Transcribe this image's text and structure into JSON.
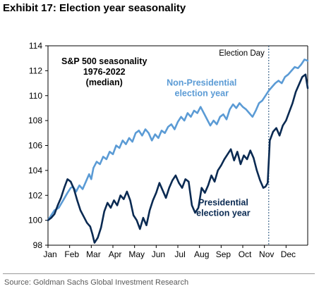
{
  "exhibit_title": "Exhibit 17: Election year seasonality",
  "source": "Source: Goldman Sachs Global Investment Research",
  "colors": {
    "non_presidential": "#5b9bd5",
    "presidential": "#0a2a52",
    "election_day_line": "#1f4e79"
  },
  "chart_data": {
    "type": "line",
    "title_lines": [
      "S&P 500 seasonality",
      "1976-2022",
      "(median)"
    ],
    "xlabel": "",
    "ylabel": "",
    "x_tick_labels": [
      "Jan",
      "Feb",
      "Mar",
      "Apr",
      "May",
      "Jun",
      "Jul",
      "Aug",
      "Sep",
      "Oct",
      "Nov",
      "Dec"
    ],
    "x_range_months": [
      0,
      12
    ],
    "ylim": [
      98,
      114
    ],
    "y_ticks": [
      98,
      100,
      102,
      104,
      106,
      108,
      110,
      112,
      114
    ],
    "grid": false,
    "annotation": {
      "label": "Election Day",
      "x_month": 10.2
    },
    "series": [
      {
        "name": "Non-Presidential election year",
        "label_lines": [
          "Non-Presidential",
          "election year"
        ],
        "color": "#5b9bd5",
        "x_month": [
          0.0,
          0.15,
          0.3,
          0.5,
          0.7,
          0.9,
          1.05,
          1.15,
          1.3,
          1.45,
          1.6,
          1.75,
          1.9,
          2.0,
          2.1,
          2.25,
          2.4,
          2.55,
          2.7,
          2.85,
          3.0,
          3.15,
          3.3,
          3.45,
          3.6,
          3.75,
          3.9,
          4.05,
          4.2,
          4.35,
          4.5,
          4.65,
          4.8,
          4.95,
          5.1,
          5.25,
          5.4,
          5.55,
          5.7,
          5.85,
          6.0,
          6.15,
          6.3,
          6.45,
          6.6,
          6.75,
          6.9,
          7.05,
          7.2,
          7.35,
          7.5,
          7.65,
          7.8,
          7.95,
          8.1,
          8.25,
          8.4,
          8.55,
          8.7,
          8.85,
          9.0,
          9.15,
          9.3,
          9.45,
          9.6,
          9.75,
          9.9,
          10.05,
          10.2,
          10.35,
          10.5,
          10.65,
          10.8,
          10.95,
          11.1,
          11.25,
          11.4,
          11.55,
          11.7,
          11.85,
          12.0
        ],
        "values": [
          100.0,
          100.4,
          100.8,
          101.0,
          101.6,
          102.2,
          102.6,
          102.7,
          102.3,
          102.8,
          102.5,
          103.1,
          103.7,
          103.3,
          104.2,
          104.7,
          104.5,
          105.1,
          104.9,
          105.5,
          105.3,
          106.0,
          105.8,
          106.4,
          106.1,
          106.6,
          106.3,
          107.0,
          107.2,
          106.8,
          107.3,
          107.0,
          106.4,
          106.9,
          106.6,
          107.2,
          107.0,
          107.5,
          107.7,
          107.3,
          107.9,
          108.3,
          108.0,
          108.6,
          108.3,
          108.8,
          108.6,
          109.1,
          108.6,
          108.1,
          107.6,
          108.0,
          107.7,
          108.3,
          108.5,
          108.1,
          108.9,
          109.3,
          109.0,
          109.4,
          109.1,
          108.9,
          108.6,
          108.3,
          108.8,
          109.4,
          109.6,
          110.0,
          110.4,
          110.7,
          111.0,
          111.2,
          111.0,
          111.5,
          111.7,
          112.0,
          112.3,
          112.2,
          112.5,
          112.9,
          112.8
        ]
      },
      {
        "name": "Presidential election year",
        "label_lines": [
          "Presidential",
          "election year"
        ],
        "color": "#0a2a52",
        "x_month": [
          0.0,
          0.15,
          0.3,
          0.45,
          0.6,
          0.75,
          0.9,
          1.05,
          1.2,
          1.35,
          1.5,
          1.65,
          1.8,
          1.95,
          2.05,
          2.15,
          2.3,
          2.45,
          2.6,
          2.75,
          2.9,
          3.05,
          3.2,
          3.35,
          3.5,
          3.65,
          3.8,
          3.95,
          4.1,
          4.25,
          4.4,
          4.55,
          4.7,
          4.85,
          5.0,
          5.15,
          5.3,
          5.45,
          5.6,
          5.75,
          5.9,
          6.05,
          6.2,
          6.35,
          6.5,
          6.65,
          6.8,
          6.95,
          7.1,
          7.25,
          7.4,
          7.55,
          7.7,
          7.85,
          8.0,
          8.15,
          8.3,
          8.45,
          8.6,
          8.75,
          8.9,
          9.05,
          9.2,
          9.35,
          9.5,
          9.65,
          9.8,
          9.95,
          10.05,
          10.15,
          10.25,
          10.4,
          10.55,
          10.7,
          10.85,
          11.0,
          11.15,
          11.3,
          11.45,
          11.6,
          11.75,
          11.9,
          12.0
        ],
        "values": [
          100.0,
          100.2,
          100.5,
          101.2,
          101.8,
          102.6,
          103.3,
          103.1,
          102.5,
          101.6,
          100.8,
          100.3,
          99.8,
          99.5,
          98.9,
          98.2,
          98.6,
          99.4,
          100.7,
          101.4,
          101.0,
          101.6,
          101.2,
          102.0,
          101.7,
          102.3,
          101.6,
          100.4,
          100.0,
          99.3,
          100.2,
          99.6,
          100.8,
          101.6,
          102.2,
          103.0,
          102.4,
          101.8,
          102.6,
          103.2,
          103.6,
          103.0,
          102.6,
          103.3,
          103.1,
          101.2,
          100.6,
          101.0,
          102.6,
          102.2,
          102.8,
          103.6,
          103.1,
          104.0,
          104.4,
          104.9,
          105.3,
          105.7,
          104.8,
          105.5,
          104.5,
          105.2,
          104.9,
          105.6,
          105.0,
          104.0,
          103.2,
          102.6,
          102.7,
          103.0,
          106.4,
          107.1,
          107.4,
          106.8,
          107.6,
          108.0,
          108.7,
          109.4,
          110.3,
          110.9,
          111.5,
          111.7,
          110.6
        ]
      }
    ]
  }
}
